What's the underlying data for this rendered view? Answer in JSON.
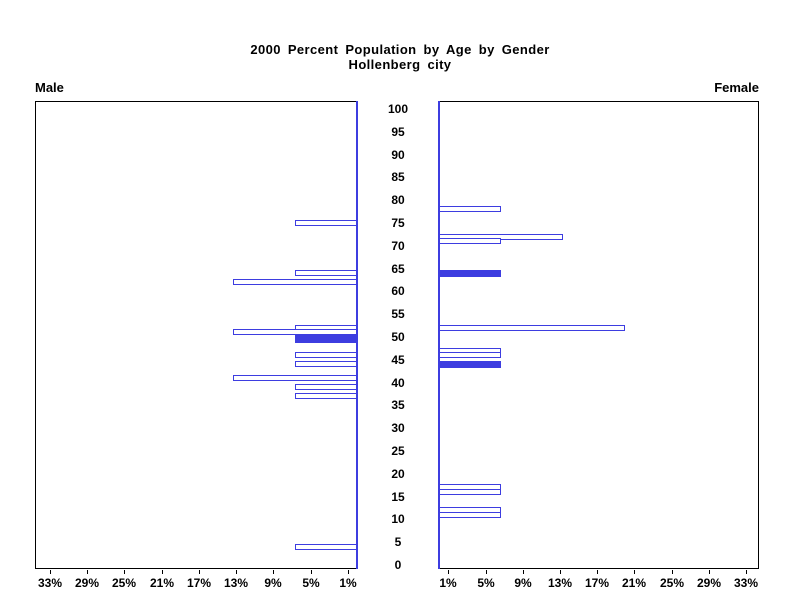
{
  "header": {
    "title_line1": "2000 Percent Population by Age by Gender",
    "title_line2": "Hollenberg city"
  },
  "panel_labels": {
    "male": "Male",
    "female": "Female"
  },
  "colors": {
    "bar_blue": "#3d3de0",
    "axis_black": "#000000",
    "background": "#ffffff"
  },
  "chart_data": {
    "type": "bar",
    "subtype": "population-pyramid",
    "title": "2000 Percent Population by Age by Gender",
    "subtitle": "Hollenberg city",
    "legend_position": "none",
    "grid": false,
    "age_axis": {
      "min": 0,
      "max": 100,
      "tick_step": 5,
      "ticks": [
        0,
        5,
        10,
        15,
        20,
        25,
        30,
        35,
        40,
        45,
        50,
        55,
        60,
        65,
        70,
        75,
        80,
        85,
        90,
        95,
        100
      ],
      "label_position": "center-between-panels"
    },
    "pct_axis": {
      "tick_values": [
        1,
        5,
        9,
        13,
        17,
        21,
        25,
        29,
        33
      ],
      "label_suffix": "%",
      "male_direction": "right-to-left",
      "female_direction": "left-to-right",
      "range": [
        0,
        34.5
      ]
    },
    "series": [
      {
        "name": "Male",
        "bars": [
          {
            "age": 75,
            "pct": 6.7,
            "filled": false
          },
          {
            "age": 64,
            "pct": 6.7,
            "filled": false
          },
          {
            "age": 62,
            "pct": 13.3,
            "filled": false
          },
          {
            "age": 52,
            "pct": 6.7,
            "filled": false
          },
          {
            "age": 51,
            "pct": 13.3,
            "filled": false
          },
          {
            "age": 49.5,
            "pct": 6.7,
            "filled": true
          },
          {
            "age": 46,
            "pct": 6.7,
            "filled": false
          },
          {
            "age": 44,
            "pct": 6.7,
            "filled": false
          },
          {
            "age": 41,
            "pct": 13.3,
            "filled": false
          },
          {
            "age": 39,
            "pct": 6.7,
            "filled": false
          },
          {
            "age": 37,
            "pct": 6.7,
            "filled": false
          },
          {
            "age": 4,
            "pct": 6.7,
            "filled": false
          }
        ]
      },
      {
        "name": "Female",
        "bars": [
          {
            "age": 78,
            "pct": 6.7,
            "filled": false
          },
          {
            "age": 72,
            "pct": 13.3,
            "filled": false
          },
          {
            "age": 71,
            "pct": 6.7,
            "filled": false
          },
          {
            "age": 64,
            "pct": 6.7,
            "filled": true
          },
          {
            "age": 52,
            "pct": 20.0,
            "filled": false
          },
          {
            "age": 47,
            "pct": 6.7,
            "filled": false
          },
          {
            "age": 46,
            "pct": 6.7,
            "filled": false
          },
          {
            "age": 44,
            "pct": 6.7,
            "filled": true
          },
          {
            "age": 17,
            "pct": 6.7,
            "filled": false
          },
          {
            "age": 16,
            "pct": 6.7,
            "filled": false
          },
          {
            "age": 12,
            "pct": 6.7,
            "filled": false
          },
          {
            "age": 11,
            "pct": 6.7,
            "filled": false
          }
        ]
      }
    ]
  }
}
